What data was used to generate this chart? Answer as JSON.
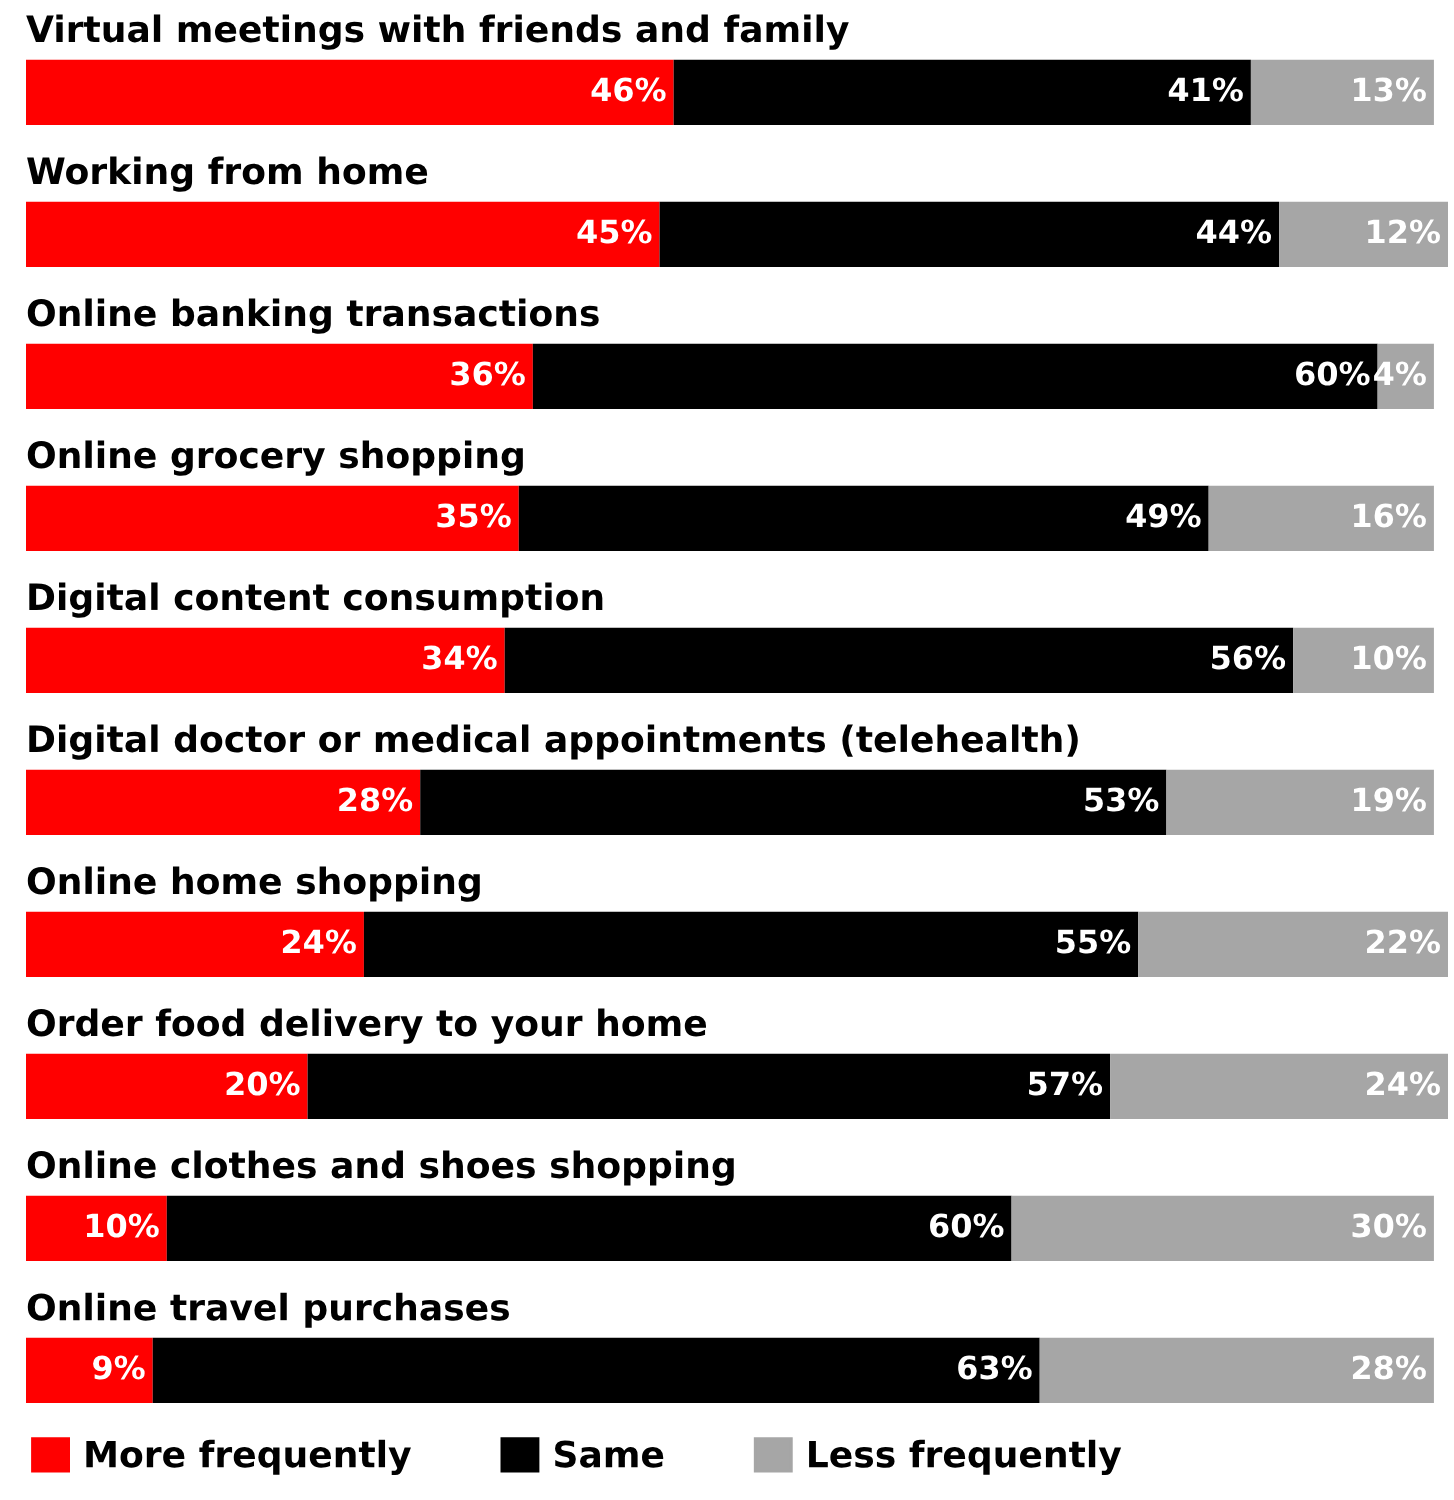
{
  "chart_data": {
    "type": "bar",
    "orientation": "horizontal",
    "stacked": true,
    "legend": "bottom left",
    "categories": [
      "Virtual meetings with friends and family",
      "Working from home",
      "Online banking transactions",
      "Online grocery shopping",
      "Digital content consumption",
      "Digital doctor or medical appointments (telehealth)",
      "Online home shopping",
      "Order food delivery to your home",
      "Online clothes and shoes shopping",
      "Online travel purchases"
    ],
    "series": [
      {
        "name": "More frequently",
        "color": "#ff0000",
        "values": [
          46,
          45,
          36,
          35,
          34,
          28,
          24,
          20,
          10,
          9
        ],
        "value_labels": [
          "46%",
          "45%",
          "36%",
          "35%",
          "34%",
          "28%",
          "24%",
          "20%",
          "10%",
          "9%"
        ]
      },
      {
        "name": "Same",
        "color": "#000000",
        "values": [
          41,
          44,
          60,
          49,
          56,
          53,
          55,
          57,
          60,
          63
        ],
        "value_labels": [
          "41%",
          "44%",
          "60%",
          "49%",
          "56%",
          "53%",
          "55%",
          "57%",
          "60%",
          "63%"
        ]
      },
      {
        "name": "Less frequently",
        "color": "#a6a6a6",
        "values": [
          13,
          12,
          4,
          16,
          10,
          19,
          22,
          24,
          30,
          28
        ],
        "value_labels": [
          "13%",
          "12%",
          "4%",
          "16%",
          "10%",
          "19%",
          "22%",
          "24%",
          "30%",
          "28%"
        ]
      }
    ]
  }
}
